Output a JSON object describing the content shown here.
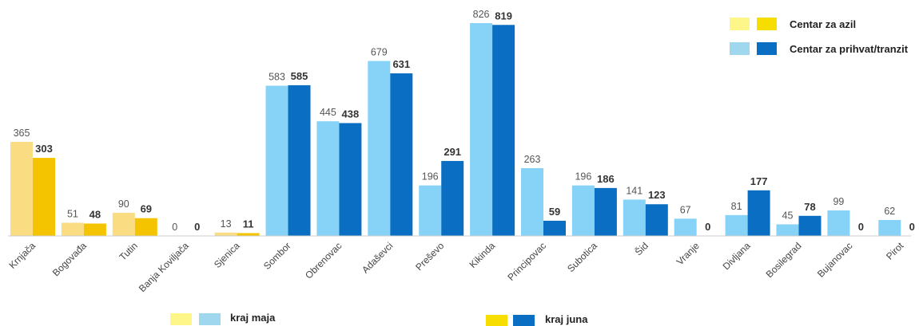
{
  "chart_data": {
    "type": "bar",
    "categories": [
      "Krnjača",
      "Bogovađa",
      "Tutin",
      "Banja Koviljača",
      "Sjenica",
      "Sombor",
      "Obrenovac",
      "Adaševci",
      "Preševo",
      "Kikinda",
      "Principovac",
      "Subotica",
      "Šid",
      "Vranje",
      "Divljana",
      "Bosilegrad",
      "Bujanovac",
      "Pirot"
    ],
    "center_type": [
      "azil",
      "azil",
      "azil",
      "azil",
      "azil",
      "tranzit",
      "tranzit",
      "tranzit",
      "tranzit",
      "tranzit",
      "tranzit",
      "tranzit",
      "tranzit",
      "tranzit",
      "tranzit",
      "tranzit",
      "tranzit",
      "tranzit"
    ],
    "series": [
      {
        "name": "kraj maja",
        "values": [
          365,
          51,
          90,
          0,
          13,
          583,
          445,
          679,
          196,
          826,
          263,
          196,
          141,
          67,
          81,
          45,
          99,
          62
        ]
      },
      {
        "name": "kraj juna",
        "values": [
          303,
          48,
          69,
          0,
          11,
          585,
          438,
          631,
          291,
          819,
          59,
          186,
          123,
          0,
          177,
          78,
          0,
          0
        ]
      }
    ],
    "ylim": [
      0,
      826
    ],
    "grid": false,
    "colors": {
      "azil_maj": "#fadc82",
      "azil_jun": "#f5c400",
      "tranzit_maj": "#87d3f8",
      "tranzit_jun": "#0a6fc2",
      "legend_azil_maj": "#fff68a",
      "legend_azil_jun": "#f7dd00",
      "legend_tranzit_maj": "#9fd8ee",
      "legend_tranzit_jun": "#0a6fc2"
    }
  },
  "legend": {
    "center_azil": "Centar za azil",
    "center_tranzit": "Centar za prihvat/tranzit",
    "kraj_maja": "kraj maja",
    "kraj_juna": "kraj juna"
  }
}
